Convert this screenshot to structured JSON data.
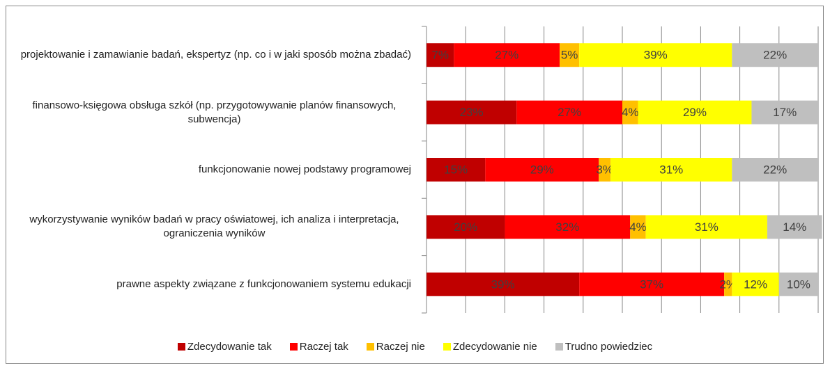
{
  "chart_data": {
    "type": "stacked-bar-horizontal",
    "categories": [
      "projektowanie i zamawianie badań, ekspertyz (np. co i w jaki sposób można zbadać)",
      "finansowo-księgowa obsługa szkół (np. przygotowywanie planów finansowych, subwencja)",
      "funkcjonowanie nowej podstawy programowej",
      "wykorzystywanie wyników badań w pracy oświatowej, ich analiza i interpretacja, ograniczenia wyników",
      "prawne aspekty związane z funkcjonowaniem systemu edukacji"
    ],
    "series": [
      {
        "name": "Zdecydowanie tak",
        "color": "#c00000",
        "values": [
          7,
          23,
          15,
          20,
          39
        ],
        "value_labels": [
          "7%",
          "23%",
          "15%",
          "20%",
          "39%"
        ]
      },
      {
        "name": "Raczej tak",
        "color": "#ff0000",
        "values": [
          27,
          27,
          29,
          32,
          37
        ],
        "value_labels": [
          "27%",
          "27%",
          "29%",
          "32%",
          "37%"
        ]
      },
      {
        "name": "Raczej nie",
        "color": "#ffc000",
        "values": [
          5,
          4,
          3,
          4,
          2
        ],
        "value_labels": [
          "5%",
          "4%",
          "3%",
          "4%",
          "2%"
        ]
      },
      {
        "name": "Zdecydowanie nie",
        "color": "#ffff00",
        "values": [
          39,
          29,
          31,
          31,
          12
        ],
        "value_labels": [
          "39%",
          "29%",
          "31%",
          "31%",
          "12%"
        ]
      },
      {
        "name": "Trudno powiedziec",
        "color": "#bfbfbf",
        "values": [
          22,
          17,
          22,
          14,
          10
        ],
        "value_labels": [
          "22%",
          "17%",
          "22%",
          "14%",
          "10%"
        ]
      }
    ],
    "xlim": [
      0,
      100
    ],
    "xticks": [
      0,
      10,
      20,
      30,
      40,
      50,
      60,
      70,
      80,
      90,
      100
    ],
    "grid": true,
    "legend": "bottom"
  }
}
